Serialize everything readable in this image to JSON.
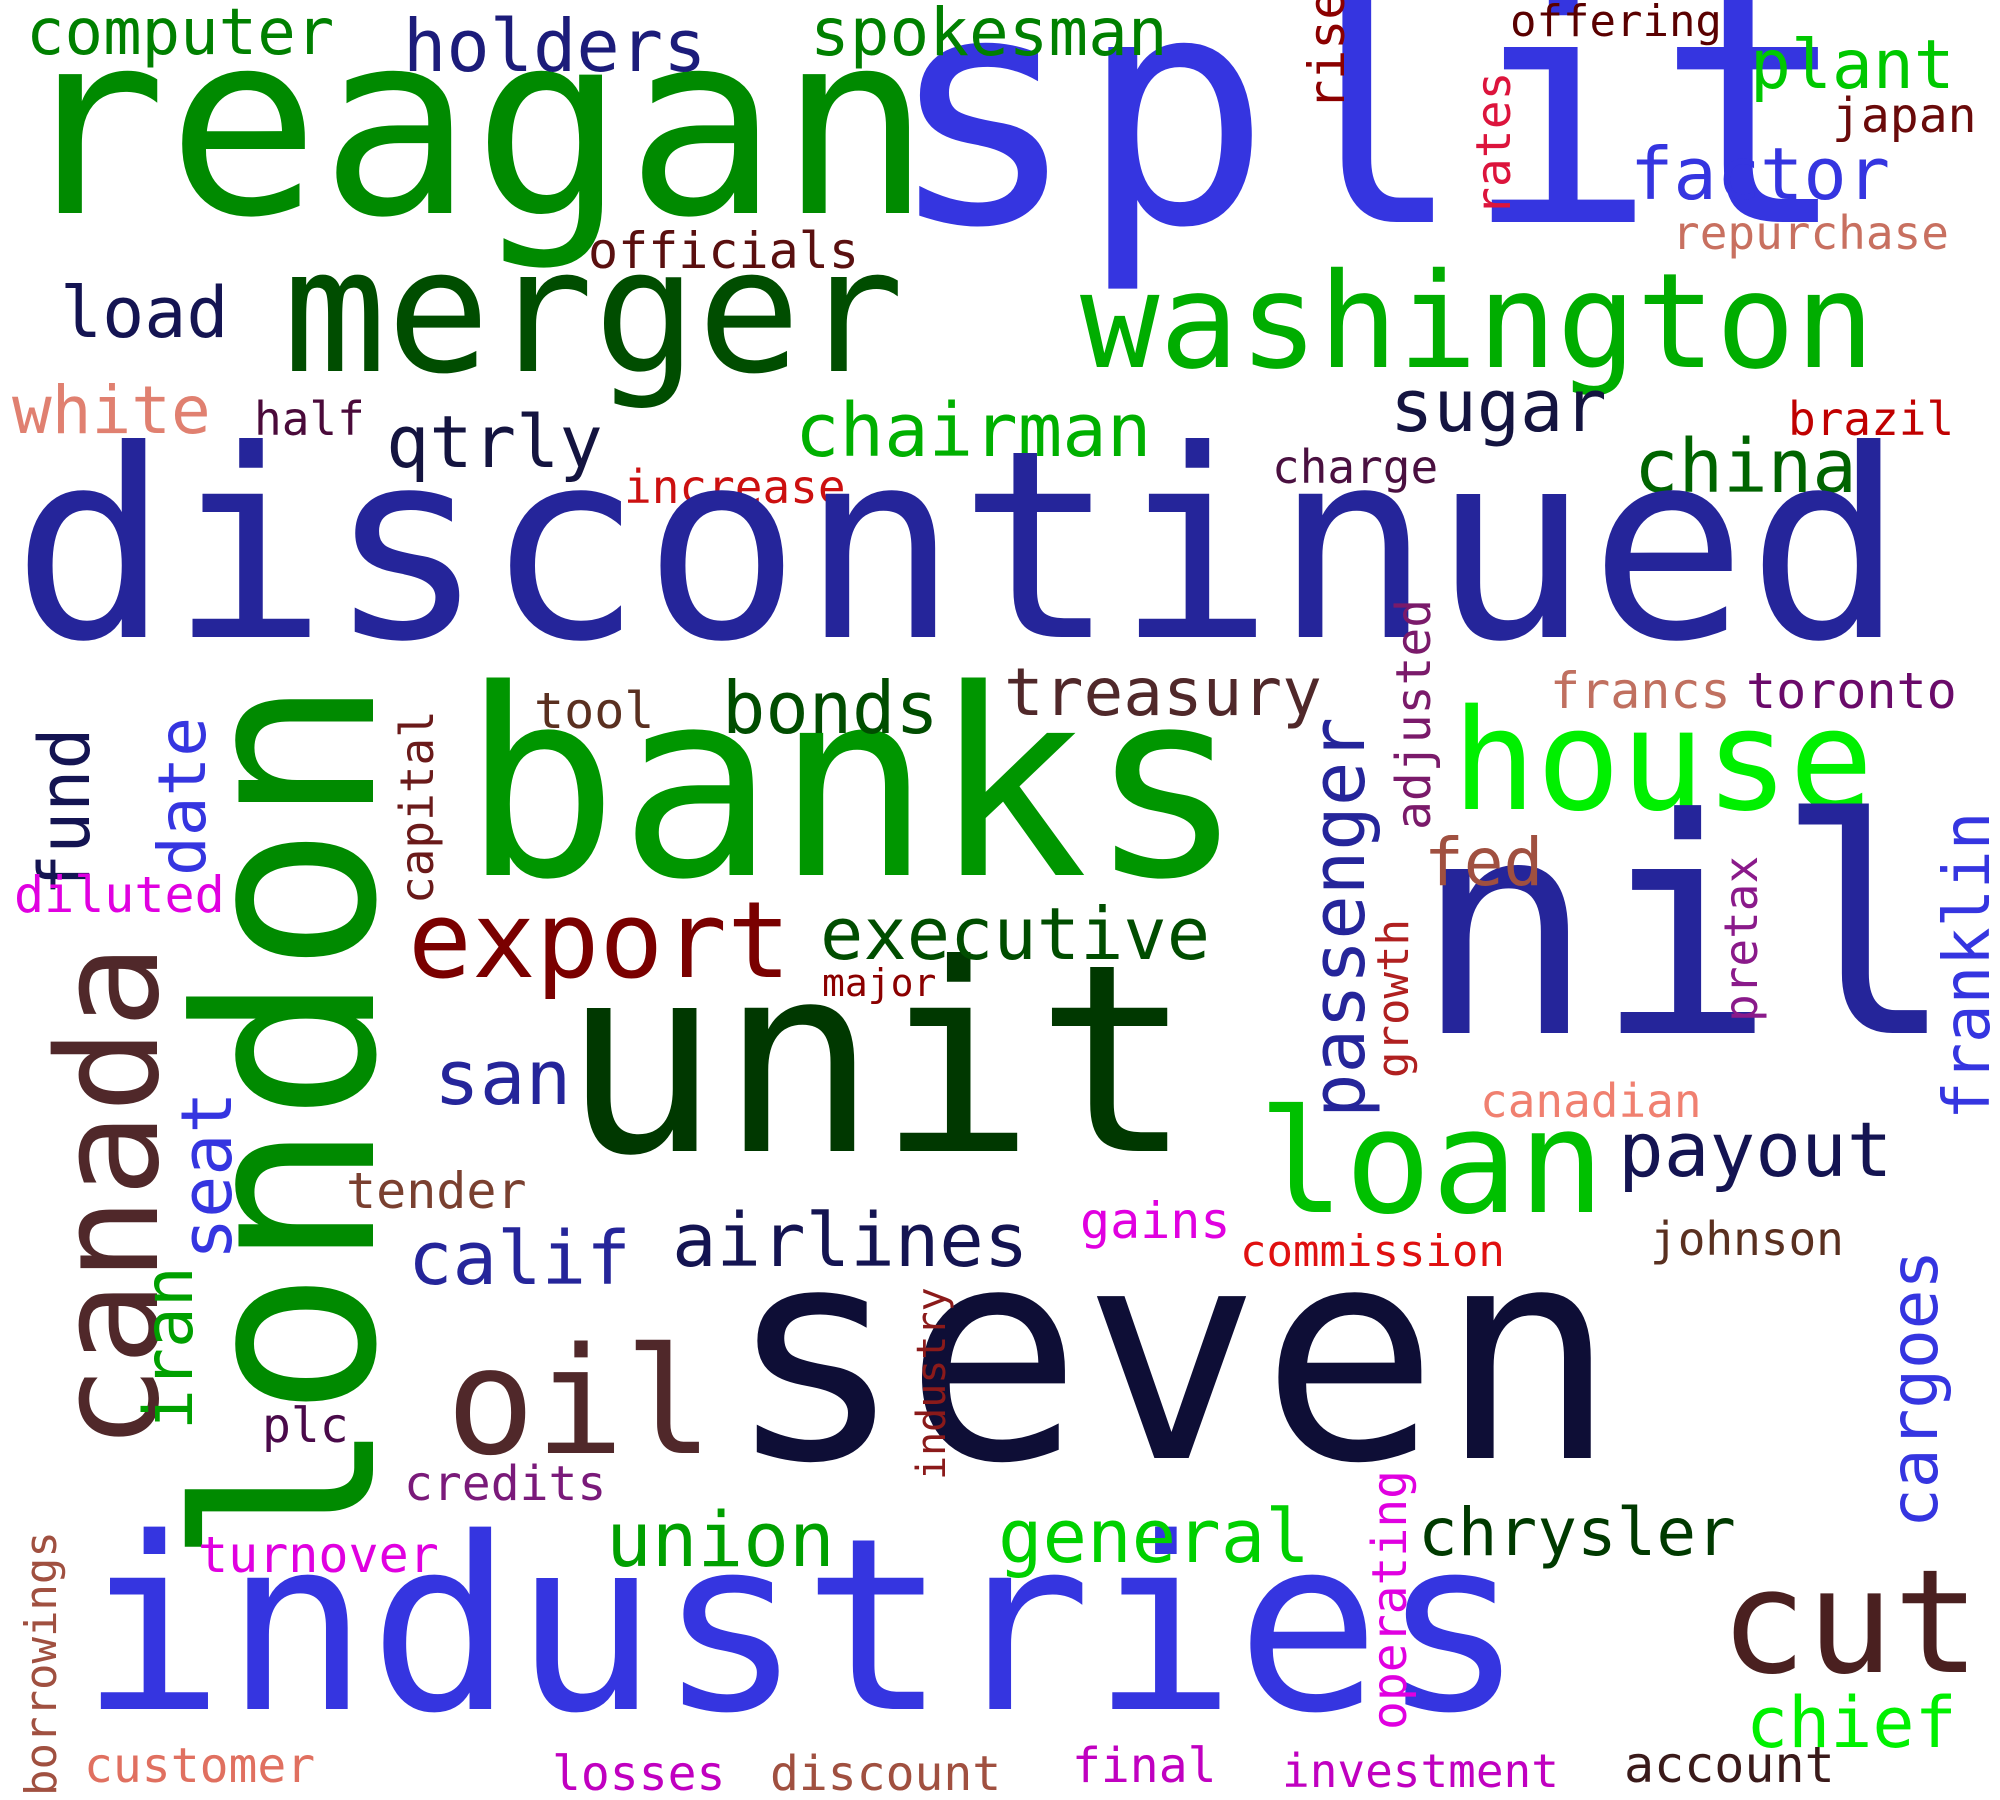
{
  "words": [
    {
      "text": "reagan",
      "color": "#008a00"
    },
    {
      "text": "split",
      "color": "#3535e0"
    },
    {
      "text": "merger",
      "color": "#004d00"
    },
    {
      "text": "washington",
      "color": "#00ad00"
    },
    {
      "text": "computer",
      "color": "#008000"
    },
    {
      "text": "holders",
      "color": "#1c1c7a"
    },
    {
      "text": "spokesman",
      "color": "#008000"
    },
    {
      "text": "rise",
      "color": "#8b0000"
    },
    {
      "text": "rates",
      "color": "#dc143c"
    },
    {
      "text": "offering",
      "color": "#5a0000"
    },
    {
      "text": "plant",
      "color": "#00c800"
    },
    {
      "text": "japan",
      "color": "#6a0a0a"
    },
    {
      "text": "factor",
      "color": "#3535e0"
    },
    {
      "text": "repurchase",
      "color": "#c87060"
    },
    {
      "text": "officials",
      "color": "#5a1010"
    },
    {
      "text": "load",
      "color": "#141452"
    },
    {
      "text": "white",
      "color": "#e08070"
    },
    {
      "text": "half",
      "color": "#4a0a3a"
    },
    {
      "text": "qtrly",
      "color": "#141440"
    },
    {
      "text": "chairman",
      "color": "#00b000"
    },
    {
      "text": "sugar",
      "color": "#141440"
    },
    {
      "text": "brazil",
      "color": "#c00000"
    },
    {
      "text": "increase",
      "color": "#cc1010"
    },
    {
      "text": "charge",
      "color": "#4a1040"
    },
    {
      "text": "china",
      "color": "#006400"
    },
    {
      "text": "discontinued",
      "color": "#25259a"
    },
    {
      "text": "banks",
      "color": "#009600"
    },
    {
      "text": "london",
      "color": "#008a00"
    },
    {
      "text": "house",
      "color": "#00f000"
    },
    {
      "text": "nil",
      "color": "#25259a"
    },
    {
      "text": "unit",
      "color": "#003800"
    },
    {
      "text": "seven",
      "color": "#0e0e36"
    },
    {
      "text": "industries",
      "color": "#3535e0"
    },
    {
      "text": "canada",
      "color": "#50282a"
    },
    {
      "text": "fund",
      "color": "#141452"
    },
    {
      "text": "date",
      "color": "#3535e0"
    },
    {
      "text": "capital",
      "color": "#6a1a1a"
    },
    {
      "text": "tool",
      "color": "#5a3020"
    },
    {
      "text": "bonds",
      "color": "#004d00"
    },
    {
      "text": "treasury",
      "color": "#50282a"
    },
    {
      "text": "passenger",
      "color": "#25259a"
    },
    {
      "text": "adjusted",
      "color": "#7a1a6a"
    },
    {
      "text": "francs",
      "color": "#c07060"
    },
    {
      "text": "toronto",
      "color": "#6a0a6a"
    },
    {
      "text": "franklin",
      "color": "#3535e0"
    },
    {
      "text": "fed",
      "color": "#a05040"
    },
    {
      "text": "pretax",
      "color": "#8a1a8a"
    },
    {
      "text": "diluted",
      "color": "#e000e0"
    },
    {
      "text": "export",
      "color": "#7a0000"
    },
    {
      "text": "executive",
      "color": "#004d00"
    },
    {
      "text": "major",
      "color": "#8b0000"
    },
    {
      "text": "growth",
      "color": "#b02020"
    },
    {
      "text": "san",
      "color": "#25259a"
    },
    {
      "text": "seat",
      "color": "#3535e0"
    },
    {
      "text": "iran",
      "color": "#00a000"
    },
    {
      "text": "loan",
      "color": "#00c000"
    },
    {
      "text": "canadian",
      "color": "#f08070"
    },
    {
      "text": "payout",
      "color": "#141452"
    },
    {
      "text": "tender",
      "color": "#7a4030"
    },
    {
      "text": "calif",
      "color": "#25259a"
    },
    {
      "text": "airlines",
      "color": "#141452"
    },
    {
      "text": "gains",
      "color": "#e000e0"
    },
    {
      "text": "commission",
      "color": "#e01010"
    },
    {
      "text": "johnson",
      "color": "#5a3020"
    },
    {
      "text": "cargoes",
      "color": "#3535e0"
    },
    {
      "text": "oil",
      "color": "#50282a"
    },
    {
      "text": "plc",
      "color": "#4a0a4a"
    },
    {
      "text": "industry",
      "color": "#8b1a1a"
    },
    {
      "text": "credits",
      "color": "#7a1a7a"
    },
    {
      "text": "operating",
      "color": "#e000e0"
    },
    {
      "text": "union",
      "color": "#00a000"
    },
    {
      "text": "general",
      "color": "#00d000"
    },
    {
      "text": "chrysler",
      "color": "#003a00"
    },
    {
      "text": "borrowings",
      "color": "#a05040"
    },
    {
      "text": "turnover",
      "color": "#e000e0"
    },
    {
      "text": "cut",
      "color": "#4a2020"
    },
    {
      "text": "chief",
      "color": "#00f000"
    },
    {
      "text": "customer",
      "color": "#e07060"
    },
    {
      "text": "losses",
      "color": "#c000c0"
    },
    {
      "text": "discount",
      "color": "#a05040"
    },
    {
      "text": "final",
      "color": "#c000c0"
    },
    {
      "text": "investment",
      "color": "#c000c0"
    },
    {
      "text": "account",
      "color": "#3a1a1a"
    }
  ]
}
